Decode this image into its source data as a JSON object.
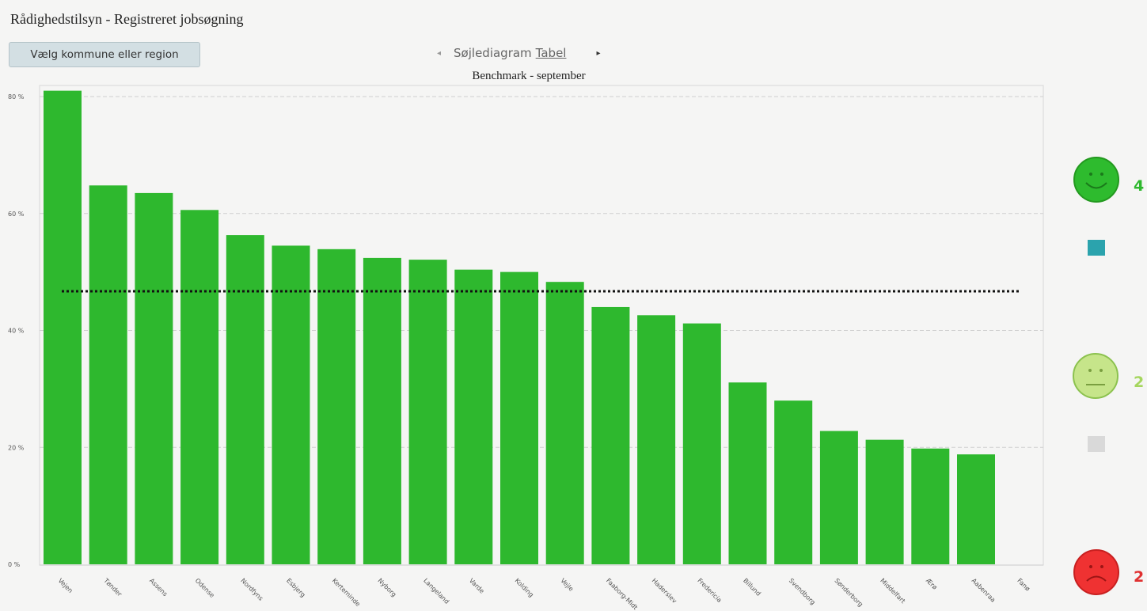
{
  "app": {
    "title": "Rådighedstilsyn - Registreret jobsøgning"
  },
  "toolbar": {
    "region_button_label": "Vælg kommune eller region"
  },
  "view_toggle": {
    "prev_glyph": "◂",
    "next_glyph": "▸",
    "options": [
      "Søjlediagram",
      "Tabel"
    ],
    "active": "Søjlediagram"
  },
  "chart_data": {
    "type": "bar",
    "title": "Benchmark - september",
    "categories": [
      "Vejen",
      "Tønder",
      "Assens",
      "Odense",
      "Nordfyns",
      "Esbjerg",
      "Kerteminde",
      "Nyborg",
      "Langeland",
      "Varde",
      "Kolding",
      "Vejle",
      "Faaborg-Midt",
      "Haderslev",
      "Fredericia",
      "Billund",
      "Svendborg",
      "Sønderborg",
      "Middelfart",
      "Ærø",
      "Aabenraa",
      "Fanø"
    ],
    "category_labels": [
      "Vejen",
      "Tønder",
      "Assens",
      "Odense",
      "Nordfyns",
      "Esbjerg",
      "Kerteminde",
      "Nyborg",
      "Langeland",
      "Varde",
      "Kolding",
      "Vejle",
      "Faaborg-Midt",
      "Haderslev",
      "Fredericia",
      "Billund",
      "Svendborg",
      "Sønderborg",
      "Middelfart",
      "Ærø",
      "Aabenraa",
      "Fanø"
    ],
    "values": [
      81,
      64.8,
      63.5,
      60.6,
      56.3,
      54.5,
      53.9,
      52.4,
      52.1,
      50.4,
      50.0,
      48.3,
      44.0,
      42.6,
      41.2,
      31.1,
      28.0,
      22.8,
      21.3,
      19.8,
      18.8,
      null
    ],
    "benchmark": 46.7,
    "ylim": [
      0,
      80
    ],
    "yticks": [
      0,
      20,
      40,
      60,
      80
    ],
    "ytick_labels": [
      "0 %",
      "20 %",
      "40 %",
      "60 %",
      "80 %"
    ],
    "bar_color": "#2eb82e",
    "benchmark_style": "dotted black line",
    "grid": "horizontal dashed",
    "xlabel": "",
    "ylabel": ""
  },
  "legend": {
    "happy": {
      "value": "4",
      "color": "#2eb82e",
      "icon": "happy-smiley-icon"
    },
    "teal_marker": {
      "color": "#2ba3ad"
    },
    "neutral": {
      "value": "2",
      "color": "#a5d65e",
      "icon": "neutral-smiley-icon"
    },
    "gray_marker": {
      "color": "#d9d9d9"
    },
    "sad": {
      "value": "2",
      "color": "#e03030",
      "icon": "sad-smiley-icon"
    }
  }
}
